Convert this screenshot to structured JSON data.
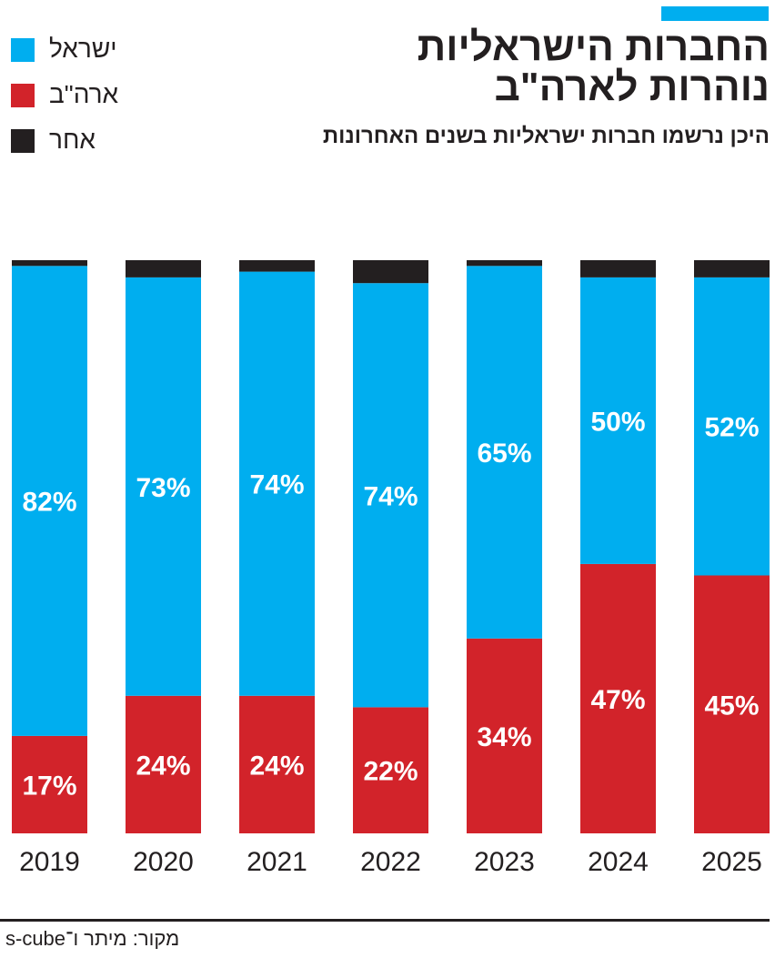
{
  "header": {
    "title_line1": "החברות הישראליות",
    "title_line2": "נוהרות לארה\"ב",
    "subtitle": "היכן נרשמו חברות ישראליות בשנים האחרונות"
  },
  "colors": {
    "israel": "#00aeef",
    "usa": "#d2232a",
    "other": "#231f20",
    "accent": "#00aeef"
  },
  "legend": [
    {
      "label": "ישראל",
      "color": "#00aeef"
    },
    {
      "label": "ארה\"ב",
      "color": "#d2232a"
    },
    {
      "label": "אחר",
      "color": "#231f20"
    }
  ],
  "chart_data": {
    "type": "bar",
    "stacked": true,
    "categories": [
      "2019",
      "2020",
      "2021",
      "2022",
      "2023",
      "2024",
      "2025"
    ],
    "series": [
      {
        "name": "ארה\"ב",
        "values": [
          17,
          24,
          24,
          22,
          34,
          47,
          45
        ],
        "labels": [
          "17%",
          "24%",
          "24%",
          "22%",
          "34%",
          "47%",
          "45%"
        ]
      },
      {
        "name": "ישראל",
        "values": [
          82,
          73,
          74,
          74,
          65,
          50,
          52
        ],
        "labels": [
          "82%",
          "73%",
          "74%",
          "74%",
          "65%",
          "50%",
          "52%"
        ]
      },
      {
        "name": "אחר",
        "values": [
          1,
          3,
          2,
          4,
          1,
          3,
          3
        ]
      }
    ],
    "ylim": [
      0,
      100
    ]
  },
  "source": "מקור: מיתר ו־s-cube"
}
